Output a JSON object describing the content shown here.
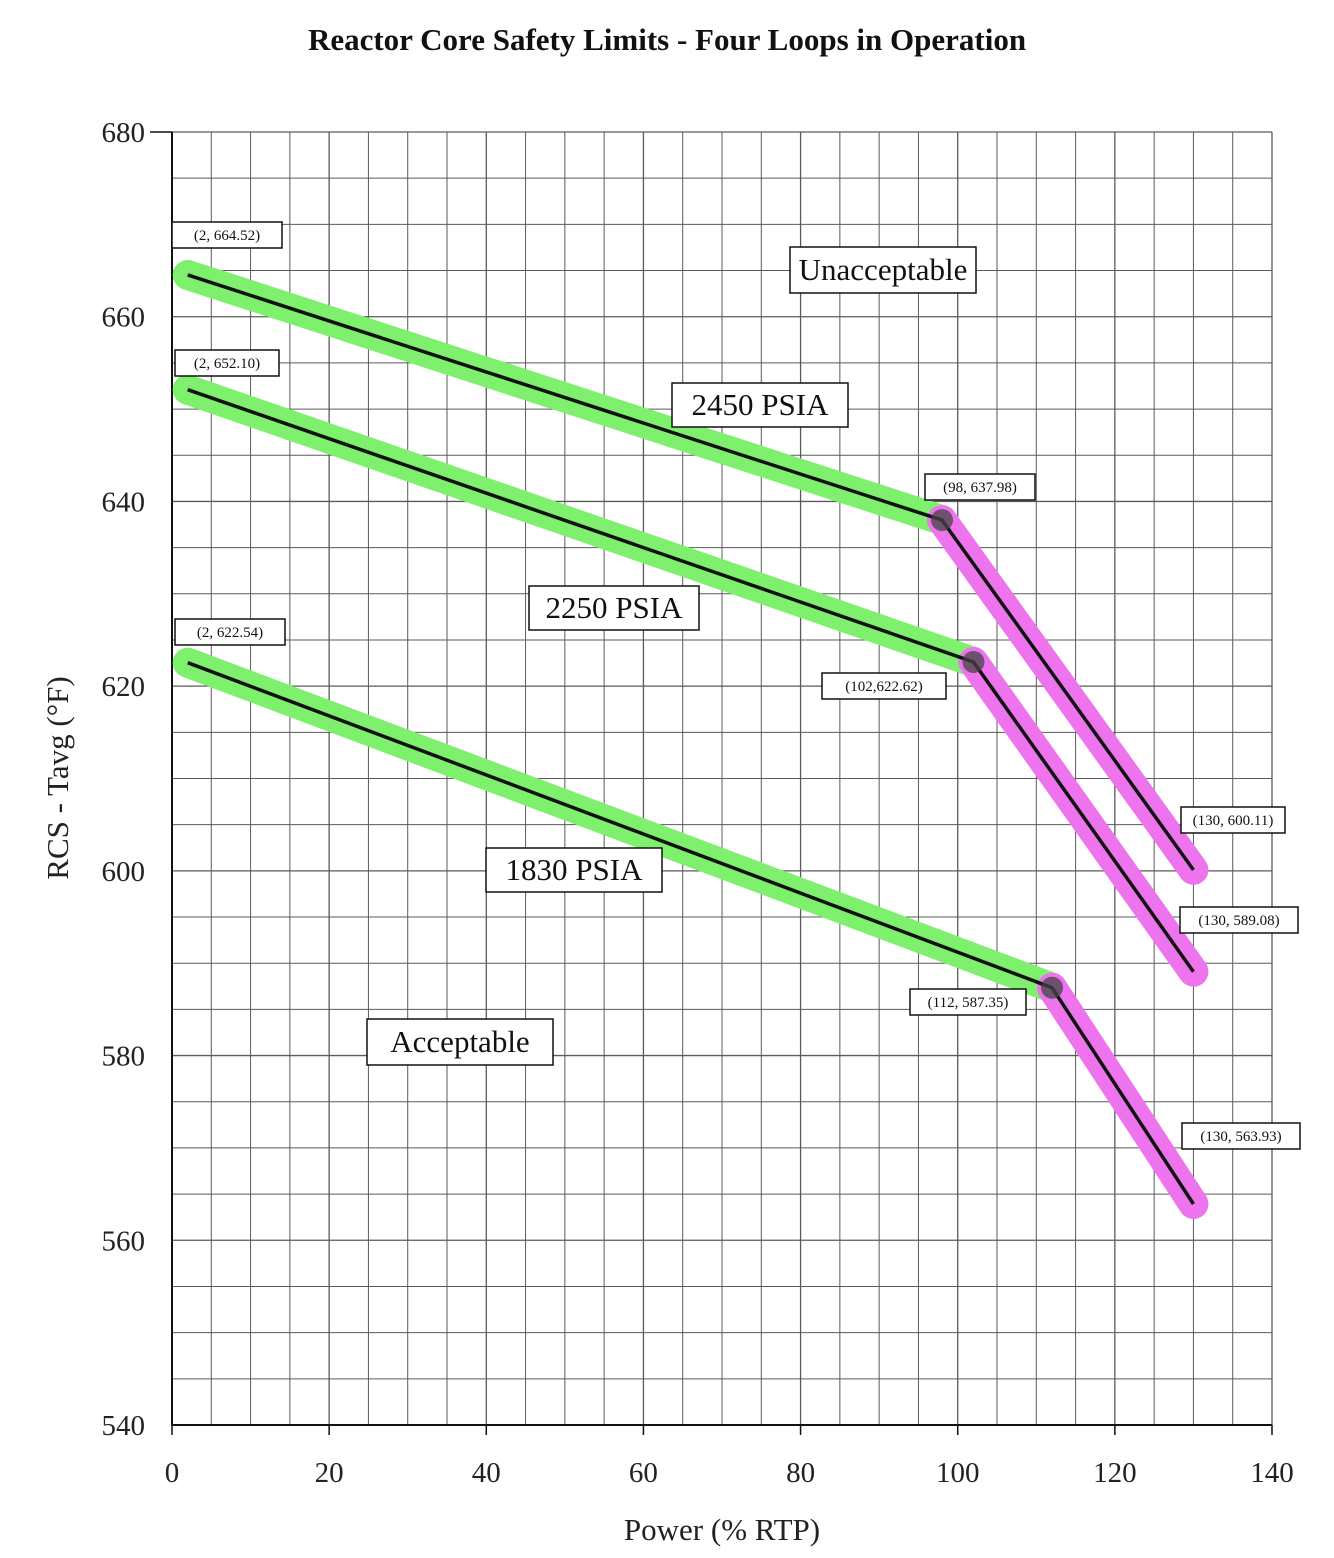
{
  "chart_data": {
    "type": "line",
    "title": "Reactor Core Safety Limits - Four Loops in Operation",
    "xlabel": "Power (% RTP)",
    "ylabel": "RCS - Tavg (°F)",
    "xlim": [
      0,
      140
    ],
    "ylim": [
      540,
      680
    ],
    "x_ticks": [
      0,
      20,
      40,
      60,
      80,
      100,
      120,
      140
    ],
    "y_ticks": [
      540,
      560,
      580,
      600,
      620,
      640,
      660,
      680
    ],
    "grid": true,
    "series": [
      {
        "name": "2450 PSIA",
        "points": [
          [
            2,
            664.52
          ],
          [
            98,
            637.98
          ],
          [
            130,
            600.11
          ]
        ],
        "point_labels": [
          "(2, 664.52)",
          "(98, 637.98)",
          "(130, 600.11)"
        ]
      },
      {
        "name": "2250 PSIA",
        "points": [
          [
            2,
            652.1
          ],
          [
            102,
            622.62
          ],
          [
            130,
            589.08
          ]
        ],
        "point_labels": [
          "(2, 652.10)",
          "(102,622.62)",
          "(130, 589.08)"
        ]
      },
      {
        "name": "1830 PSIA",
        "points": [
          [
            2,
            622.54
          ],
          [
            112,
            587.35
          ],
          [
            130,
            563.93
          ]
        ],
        "point_labels": [
          "(2, 622.54)",
          "(112, 587.35)",
          "(130, 563.93)"
        ]
      }
    ],
    "regions": {
      "unacceptable": "Unacceptable",
      "acceptable": "Acceptable"
    },
    "colors": {
      "first_segment_highlight": "#7ef06e",
      "second_segment_highlight": "#ee74ee",
      "line": "#111111",
      "grid": "#5a5a5a"
    }
  }
}
